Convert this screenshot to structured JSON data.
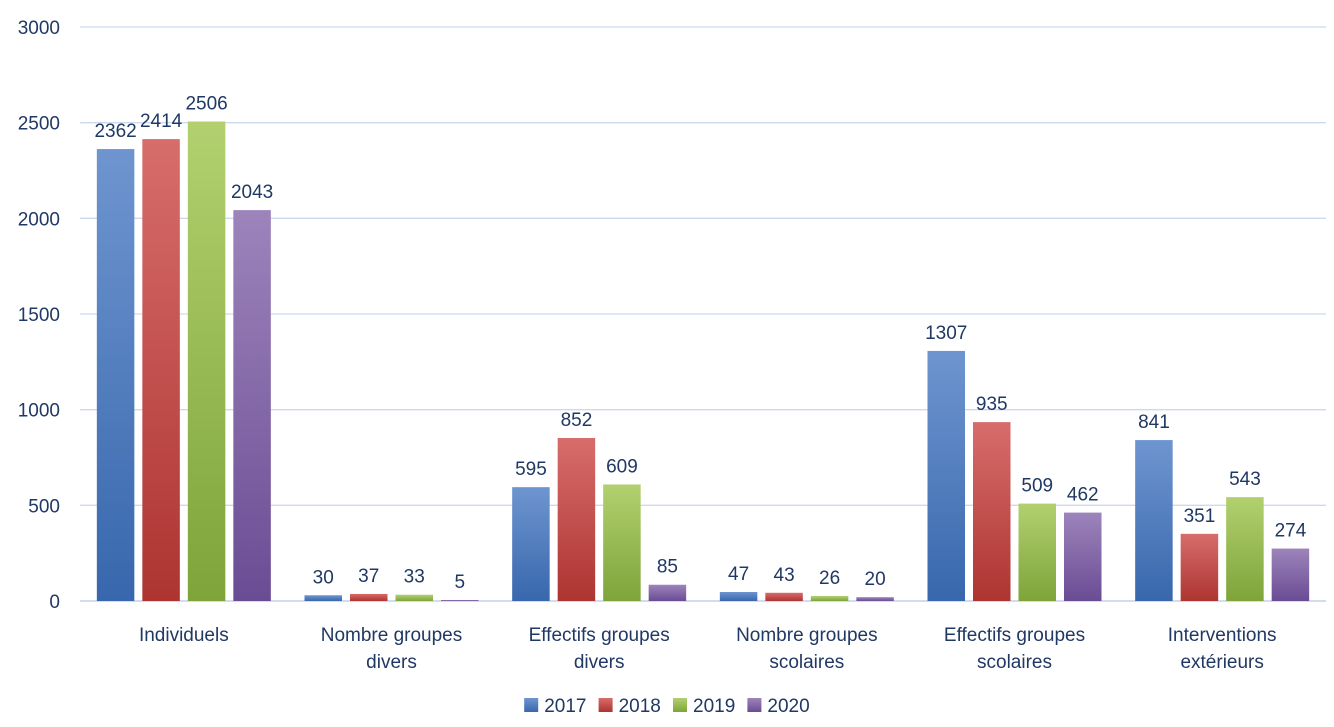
{
  "chart_data": {
    "type": "bar",
    "categories": [
      [
        "Individuels"
      ],
      [
        "Nombre groupes",
        "divers"
      ],
      [
        "Effectifs groupes",
        "divers"
      ],
      [
        "Nombre groupes",
        "scolaires"
      ],
      [
        "Effectifs groupes",
        "scolaires"
      ],
      [
        "Interventions",
        "extérieurs"
      ]
    ],
    "series": [
      {
        "name": "2017",
        "values": [
          2362,
          30,
          595,
          47,
          1307,
          841
        ],
        "color_top": "#6e95cf",
        "color_bottom": "#3867ad"
      },
      {
        "name": "2018",
        "values": [
          2414,
          37,
          852,
          43,
          935,
          351
        ],
        "color_top": "#d76d6b",
        "color_bottom": "#ad3431"
      },
      {
        "name": "2019",
        "values": [
          2506,
          33,
          609,
          26,
          509,
          543
        ],
        "color_top": "#b2d06f",
        "color_bottom": "#7ea43a"
      },
      {
        "name": "2020",
        "values": [
          2043,
          5,
          85,
          20,
          462,
          274
        ],
        "color_top": "#9d84bb",
        "color_bottom": "#6a4c94"
      }
    ],
    "ylim": [
      0,
      3000
    ],
    "yticks": [
      0,
      500,
      1000,
      1500,
      2000,
      2500,
      3000
    ],
    "grid": true,
    "legend_position": "bottom",
    "title": "",
    "xlabel": "",
    "ylabel": ""
  }
}
